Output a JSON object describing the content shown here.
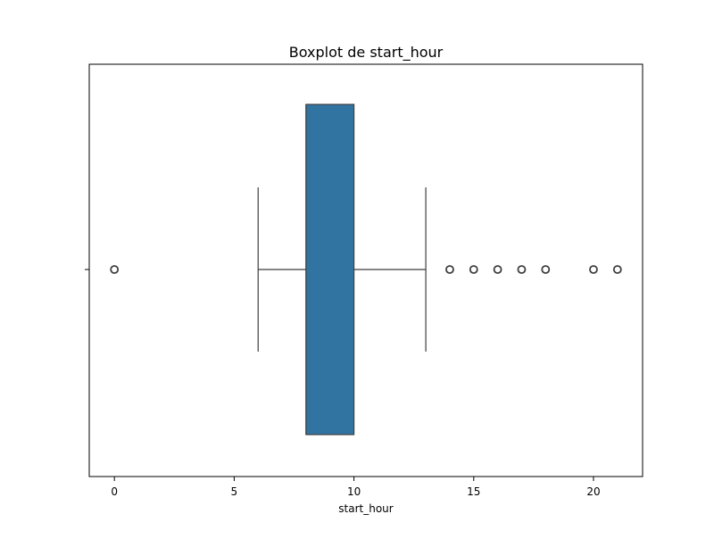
{
  "chart_data": {
    "type": "boxplot",
    "title": "Boxplot de start_hour",
    "xlabel": "start_hour",
    "ylabel": "",
    "xlim": [
      -1.05,
      22.05
    ],
    "xticks": [
      0,
      5,
      10,
      15,
      20
    ],
    "orientation": "horizontal",
    "grid": false,
    "box": {
      "whisker_low": 6,
      "q1": 8,
      "median": 8,
      "q3": 10,
      "whisker_high": 13
    },
    "outliers": [
      0,
      14,
      15,
      16,
      17,
      18,
      20,
      21
    ],
    "colors": {
      "box_fill": "#3274a1",
      "lines": "#3f3f3f",
      "axes": "#000000"
    }
  }
}
